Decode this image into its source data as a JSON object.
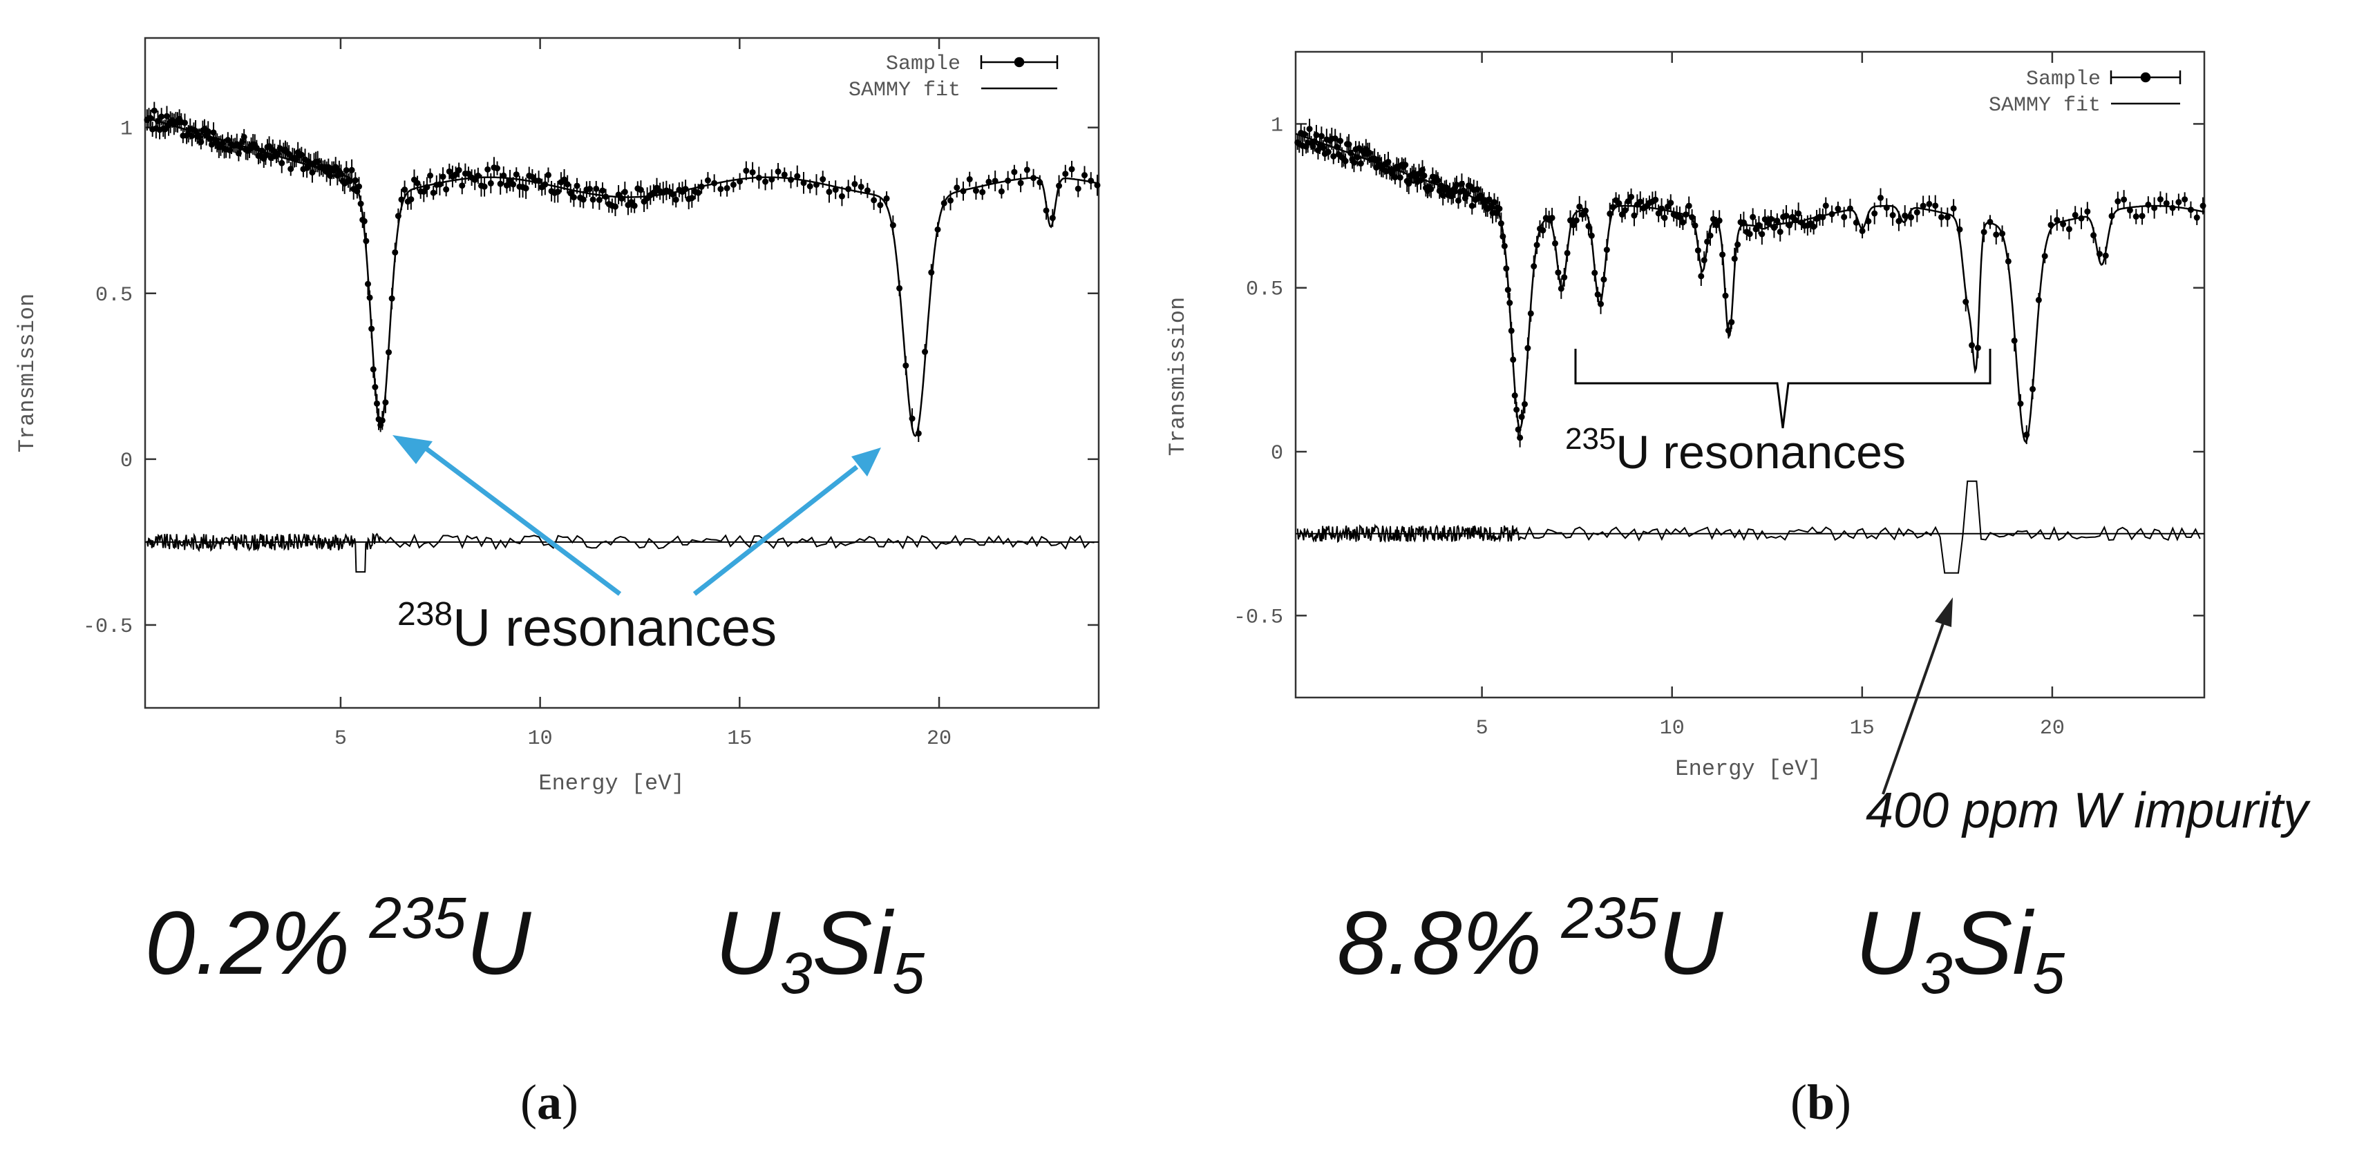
{
  "chart_data": [
    {
      "type": "scatter",
      "panel_label": [
        "(",
        "a",
        ")"
      ],
      "xlabel": "Energy [eV]",
      "ylabel": "Transmission",
      "xlim": [
        0.1,
        24
      ],
      "ylim": [
        -0.75,
        1.27
      ],
      "xticks": [
        5,
        10,
        15,
        20
      ],
      "yticks": [
        -0.5,
        0,
        0.5,
        1
      ],
      "xtick_labels": [
        "5",
        "10",
        "15",
        "20"
      ],
      "ytick_labels": [
        "-0.5",
        "0",
        "0.5",
        "1"
      ],
      "grid": false,
      "legend_position": "top-right",
      "series": [
        {
          "name": "Sample",
          "style": "points with error bars",
          "color": "#000000"
        },
        {
          "name": "SAMMY fit",
          "style": "line",
          "color": "#000000"
        }
      ],
      "baseline": 1.03,
      "baseline_end": 0.82,
      "resonances": [
        {
          "energy": 6.0,
          "min": 0.1,
          "width": 0.32
        },
        {
          "energy": 19.4,
          "min": 0.07,
          "width": 0.4
        },
        {
          "energy": 22.8,
          "min": 0.7,
          "width": 0.15
        }
      ],
      "residual_offset": -0.25,
      "annotation": {
        "sup": "238",
        "text": "U resonances"
      },
      "composition": {
        "percent": "0.2%",
        "isotope_sup": "235",
        "isotope": "U",
        "compound": [
          "U",
          "3",
          "Si",
          "5"
        ]
      }
    },
    {
      "type": "scatter",
      "panel_label": [
        "(",
        "b",
        ")"
      ],
      "xlabel": "Energy [eV]",
      "ylabel": "Transmission",
      "xlim": [
        0.1,
        24
      ],
      "ylim": [
        -0.75,
        1.22
      ],
      "xticks": [
        5,
        10,
        15,
        20
      ],
      "yticks": [
        -0.5,
        0,
        0.5,
        1
      ],
      "xtick_labels": [
        "5",
        "10",
        "15",
        "20"
      ],
      "ytick_labels": [
        "-0.5",
        "0",
        "0.5",
        "1"
      ],
      "grid": false,
      "legend_position": "top-right",
      "series": [
        {
          "name": "Sample",
          "style": "points with error bars",
          "color": "#000000"
        },
        {
          "name": "SAMMY fit",
          "style": "line",
          "color": "#000000"
        }
      ],
      "baseline": 0.97,
      "baseline_end": 0.72,
      "resonances": [
        {
          "energy": 3.2,
          "min": 0.82,
          "width": 0.1
        },
        {
          "energy": 4.5,
          "min": 0.8,
          "width": 0.12
        },
        {
          "energy": 6.0,
          "min": 0.07,
          "width": 0.3
        },
        {
          "energy": 7.1,
          "min": 0.5,
          "width": 0.18
        },
        {
          "energy": 8.1,
          "min": 0.45,
          "width": 0.2
        },
        {
          "energy": 10.8,
          "min": 0.55,
          "width": 0.15
        },
        {
          "energy": 11.5,
          "min": 0.35,
          "width": 0.15
        },
        {
          "energy": 12.4,
          "min": 0.68,
          "width": 0.15
        },
        {
          "energy": 13.3,
          "min": 0.7,
          "width": 0.15
        },
        {
          "energy": 15.0,
          "min": 0.68,
          "width": 0.15
        },
        {
          "energy": 16.1,
          "min": 0.7,
          "width": 0.15
        },
        {
          "energy": 17.8,
          "min": 0.45,
          "width": 0.2
        },
        {
          "energy": 18.0,
          "min": 0.35,
          "width": 0.12
        },
        {
          "energy": 19.3,
          "min": 0.03,
          "width": 0.35
        },
        {
          "energy": 21.3,
          "min": 0.57,
          "width": 0.2
        }
      ],
      "residual_offset": -0.25,
      "annotation": {
        "sup": "235",
        "text": "U resonances"
      },
      "impurity_annotation": "400 ppm W impurity",
      "composition": {
        "percent": "8.8%",
        "isotope_sup": "235",
        "isotope": "U",
        "compound": [
          "U",
          "3",
          "Si",
          "5"
        ]
      }
    }
  ]
}
